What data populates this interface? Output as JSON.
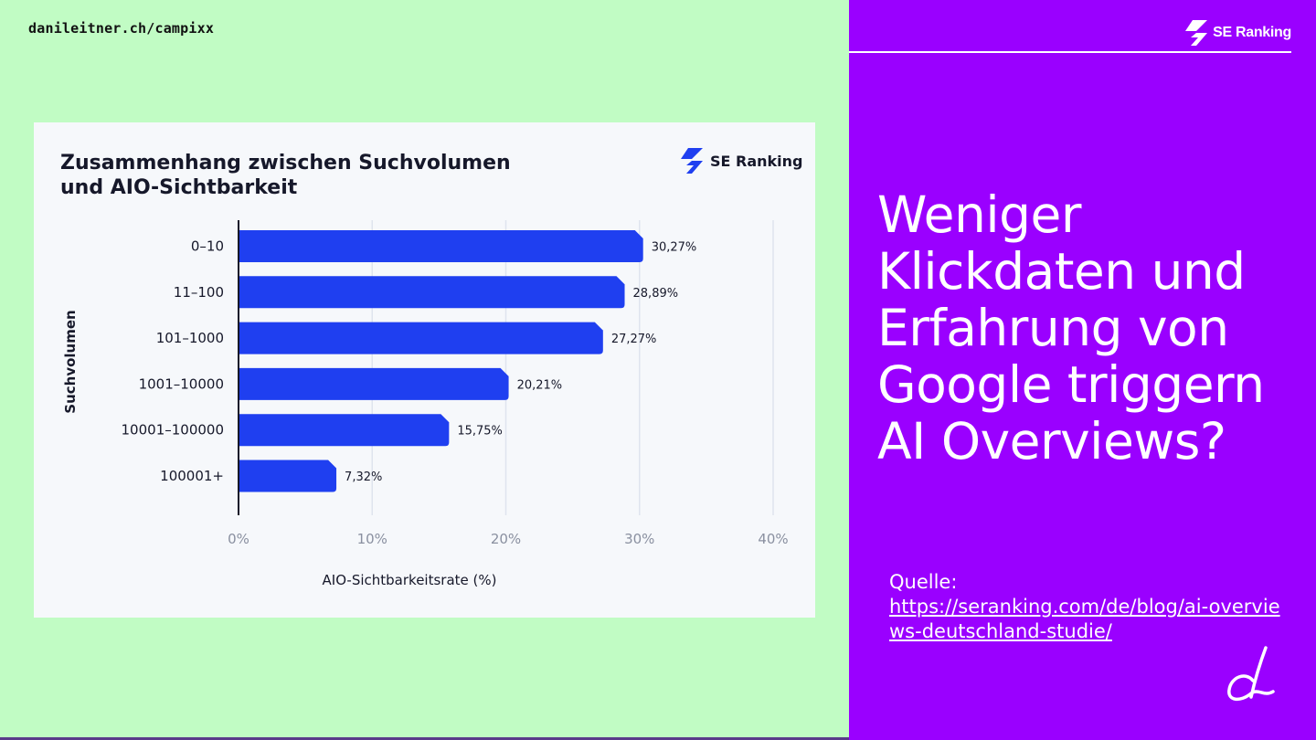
{
  "header": {
    "site_url": "danileitner.ch/campixx"
  },
  "brand": {
    "name": "SE Ranking"
  },
  "headline": "Weniger Klickdaten und Erfahrung von Google triggern AI Overviews?",
  "source": {
    "label": "Quelle:",
    "url": "https://seranking.com/de/blog/ai-overviews-deutschland-studie/"
  },
  "colors": {
    "bar": "#1f3ff0",
    "panel": "#9a00ff",
    "background": "#c1fcc4",
    "grid": "#dfe4ee"
  },
  "chart_data": {
    "type": "bar",
    "orientation": "horizontal",
    "title": "Zusammenhang zwischen Suchvolumen und AIO-Sichtbarkeit",
    "title_lines": [
      "Zusammenhang zwischen Suchvolumen",
      "und AIO-Sichtbarkeit"
    ],
    "brand": "SE Ranking",
    "xlabel": "AIO-Sichtbarkeitsrate (%)",
    "ylabel": "Suchvolumen",
    "categories": [
      "0–10",
      "11–100",
      "101–1000",
      "1001–10000",
      "10001–100000",
      "100001+"
    ],
    "values": [
      30.27,
      28.89,
      27.27,
      20.21,
      15.75,
      7.32
    ],
    "value_labels": [
      "30,27%",
      "28,89%",
      "27,27%",
      "20,21%",
      "15,75%",
      "7,32%"
    ],
    "xticks": [
      0,
      10,
      20,
      30,
      40
    ],
    "xtick_labels": [
      "0%",
      "10%",
      "20%",
      "30%",
      "40%"
    ],
    "xlim": [
      0,
      40
    ],
    "grid": true
  }
}
